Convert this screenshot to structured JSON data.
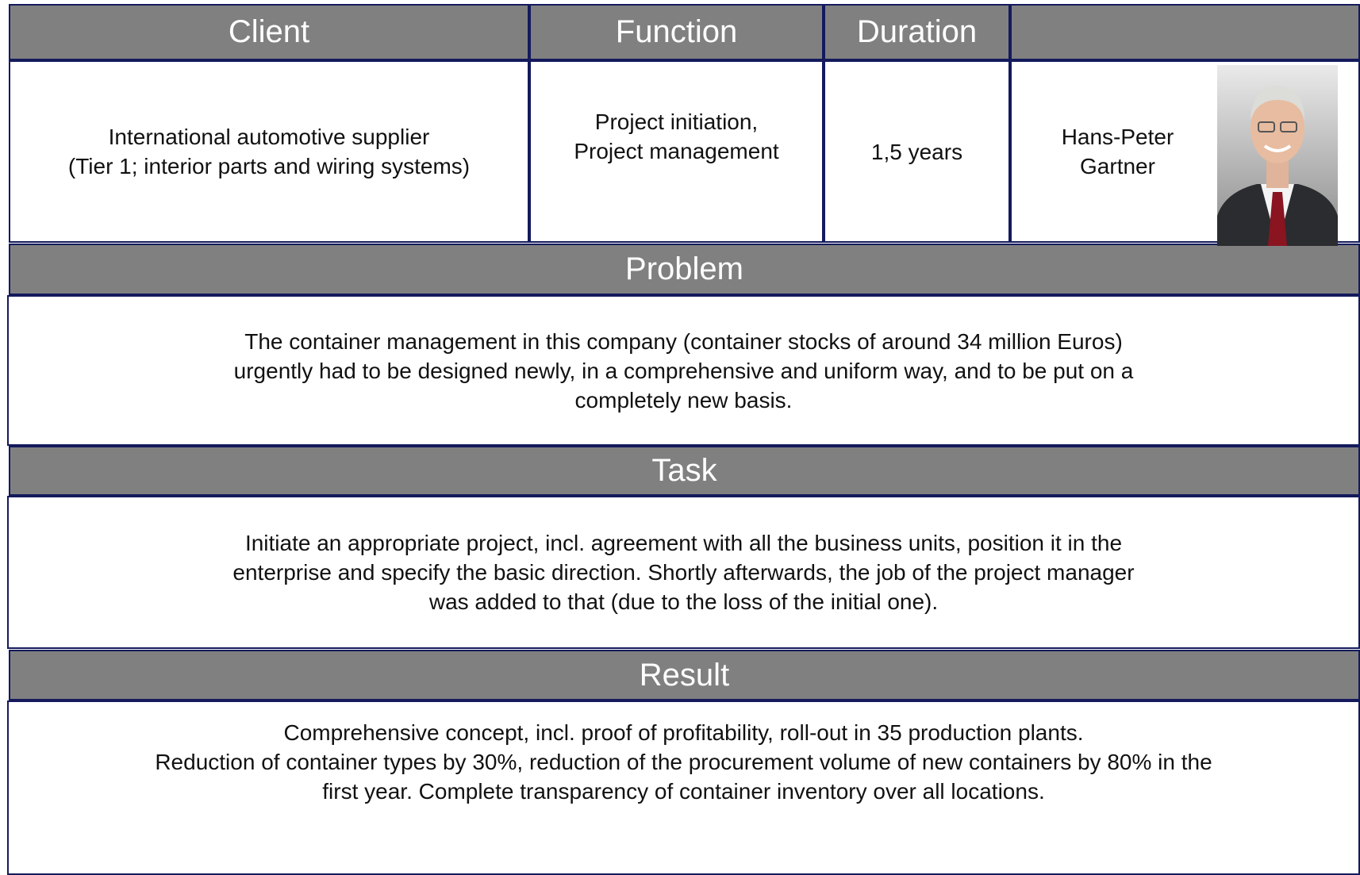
{
  "header": {
    "columns": [
      "Client",
      "Function",
      "Duration"
    ]
  },
  "info": {
    "client": [
      "International automotive supplier",
      "(Tier 1; interior parts and wiring systems)"
    ],
    "function": [
      "Project initiation,",
      "Project management"
    ],
    "duration": [
      "1,5 years"
    ],
    "consultant": [
      "Hans-Peter",
      "Gartner"
    ]
  },
  "sections": [
    {
      "title": "Problem",
      "lines": [
        "The container management in this company (container stocks of around 34 million Euros)",
        "urgently had to be designed newly, in a comprehensive and uniform way, and to be put on a",
        "completely new basis."
      ]
    },
    {
      "title": "Task",
      "lines": [
        "Initiate an appropriate project, incl. agreement with all the business units, position it in the",
        "enterprise and specify the basic direction. Shortly afterwards, the job of the project manager",
        "was added to that (due to the loss of the initial one)."
      ]
    },
    {
      "title": "Result",
      "lines": [
        "Comprehensive concept, incl. proof of profitability, roll-out in 35 production plants.",
        "Reduction of container types by 30%, reduction of the procurement volume of new containers by 80% in the",
        "first year. Complete transparency of container inventory over all locations."
      ]
    }
  ]
}
